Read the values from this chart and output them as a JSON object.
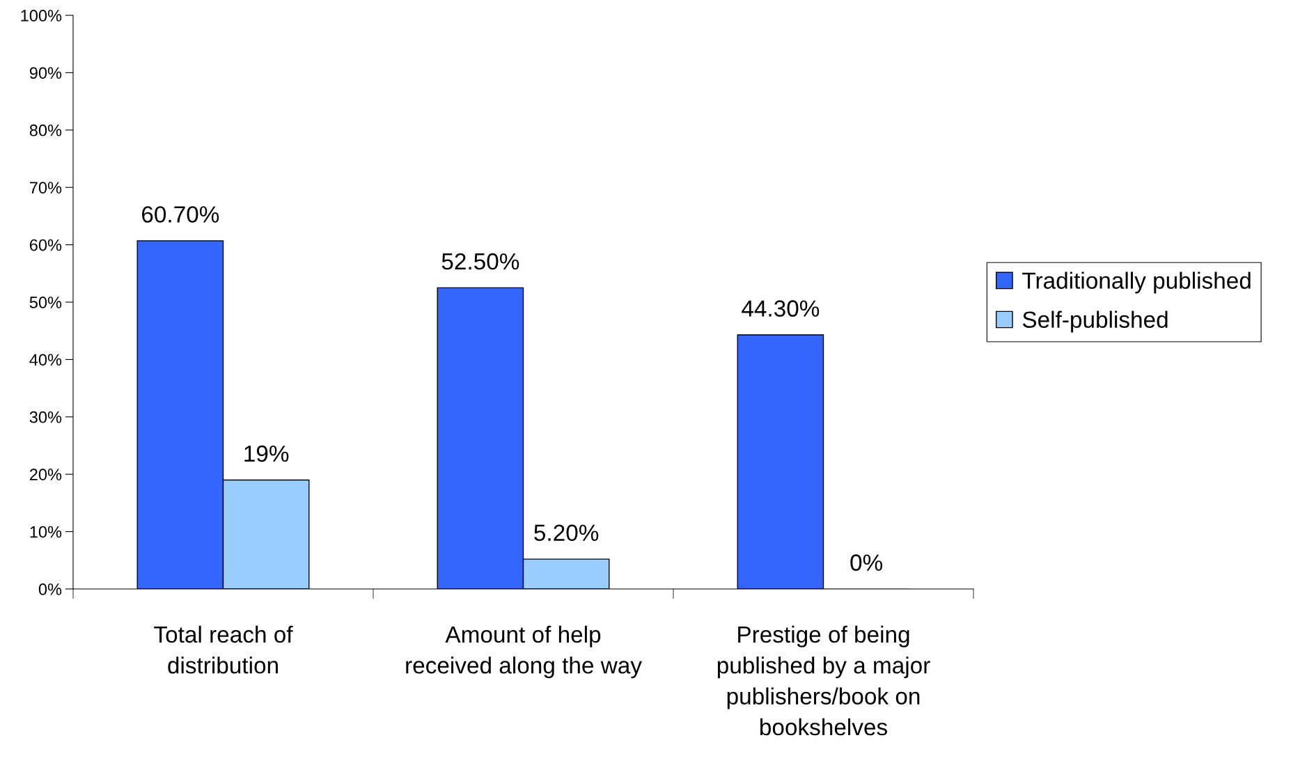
{
  "chart_data": {
    "type": "bar",
    "categories": [
      "Total reach of\ndistribution",
      "Amount of help\nreceived along the way",
      "Prestige of being\npublished by a major\npublishers/book on\nbookshelves"
    ],
    "series": [
      {
        "name": "Traditionally published",
        "color": "#3366ff",
        "values": [
          60.7,
          52.5,
          44.3
        ],
        "value_labels": [
          "60.70%",
          "52.50%",
          "44.30%"
        ]
      },
      {
        "name": "Self-published",
        "color": "#99ccff",
        "values": [
          19,
          5.2,
          0
        ],
        "value_labels": [
          "19%",
          "5.20%",
          "0%"
        ]
      }
    ],
    "ylim": [
      0,
      100
    ],
    "yticks": [
      {
        "value": 0,
        "label": "0%"
      },
      {
        "value": 10,
        "label": "10%"
      },
      {
        "value": 20,
        "label": "20%"
      },
      {
        "value": 30,
        "label": "30%"
      },
      {
        "value": 40,
        "label": "40%"
      },
      {
        "value": 50,
        "label": "50%"
      },
      {
        "value": 60,
        "label": "60%"
      },
      {
        "value": 70,
        "label": "70%"
      },
      {
        "value": 80,
        "label": "80%"
      },
      {
        "value": 90,
        "label": "90%"
      },
      {
        "value": 100,
        "label": "100%"
      }
    ],
    "grid": false,
    "legend": "right"
  }
}
